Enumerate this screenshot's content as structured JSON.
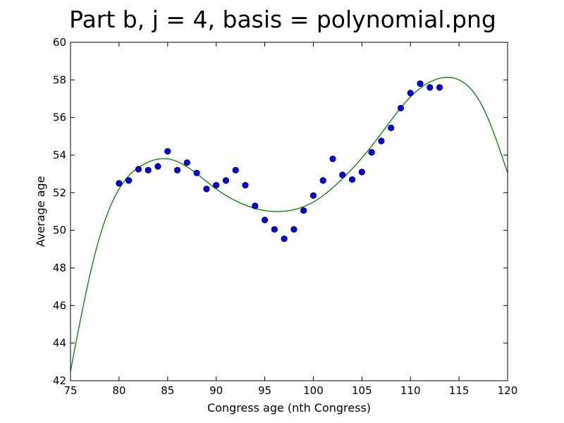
{
  "chart_data": {
    "type": "scatter",
    "title": "Part b, j = 4, basis = polynomial.png",
    "xlabel": "Congress age (nth Congress)",
    "ylabel": "Average age",
    "xlim": [
      75,
      120
    ],
    "ylim": [
      42,
      60
    ],
    "xticks": [
      75,
      80,
      85,
      90,
      95,
      100,
      105,
      110,
      115,
      120
    ],
    "yticks": [
      42,
      44,
      46,
      48,
      50,
      52,
      54,
      56,
      58,
      60
    ],
    "grid": false,
    "series": [
      {
        "kind": "scatter",
        "color": "#0000ff",
        "x": [
          80,
          81,
          82,
          83,
          84,
          85,
          86,
          87,
          88,
          89,
          90,
          91,
          92,
          93,
          94,
          95,
          96,
          97,
          98,
          99,
          100,
          101,
          102,
          103,
          104,
          105,
          106,
          107,
          108,
          109,
          110,
          111,
          112,
          113
        ],
        "y": [
          52.5,
          52.65,
          53.25,
          53.2,
          53.4,
          54.2,
          53.2,
          53.6,
          53.05,
          52.2,
          52.4,
          52.65,
          53.2,
          52.4,
          51.3,
          50.55,
          50.05,
          49.55,
          50.05,
          51.05,
          51.85,
          52.65,
          53.8,
          52.95,
          52.7,
          53.1,
          54.15,
          54.75,
          55.45,
          56.5,
          57.3,
          57.8,
          57.6,
          57.6
        ]
      },
      {
        "kind": "line",
        "color": "#008000",
        "x": [
          75,
          77.5,
          80,
          82.5,
          85,
          87.5,
          90,
          92.5,
          95,
          97.5,
          100,
          102.5,
          105,
          107.5,
          110,
          112.5,
          115,
          117.5,
          120
        ],
        "y": [
          42.5,
          48.7,
          52.2,
          53.5,
          53.8,
          53.2,
          52.2,
          51.45,
          51.05,
          51.05,
          51.5,
          52.5,
          53.85,
          55.5,
          57.1,
          58.0,
          58.0,
          56.5,
          53.05
        ]
      }
    ]
  }
}
